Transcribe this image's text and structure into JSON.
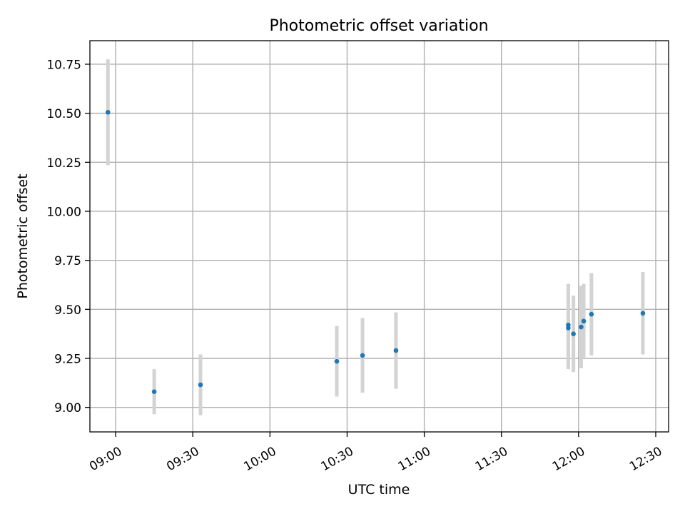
{
  "chart_data": {
    "type": "scatter",
    "title": "Photometric offset variation",
    "xlabel": "UTC time",
    "ylabel": "Photometric offset",
    "x_is_time": true,
    "xlim": [
      "08:50",
      "12:35"
    ],
    "ylim": [
      8.875,
      10.87
    ],
    "xticks": [
      "09:00",
      "09:30",
      "10:00",
      "10:30",
      "11:00",
      "11:30",
      "12:00",
      "12:30"
    ],
    "yticks": [
      9.0,
      9.25,
      9.5,
      9.75,
      10.0,
      10.25,
      10.5,
      10.75
    ],
    "ytick_labels": [
      "9.00",
      "9.25",
      "9.50",
      "9.75",
      "10.00",
      "10.25",
      "10.50",
      "10.75"
    ],
    "grid": true,
    "series": [
      {
        "x": [
          "08:57",
          "09:15",
          "09:33",
          "10:26",
          "10:36",
          "10:49",
          "11:56",
          "11:56",
          "11:58",
          "12:01",
          "12:02",
          "12:05",
          "12:25"
        ],
        "y": [
          10.505,
          9.08,
          9.115,
          9.235,
          9.265,
          9.29,
          9.42,
          9.405,
          9.375,
          9.41,
          9.44,
          9.475,
          9.48
        ],
        "yerr": [
          0.27,
          0.115,
          0.155,
          0.18,
          0.19,
          0.195,
          0.21,
          0.21,
          0.195,
          0.21,
          0.19,
          0.21,
          0.21
        ],
        "color": "#1f77b4",
        "errorbar_color": "#d3d3d3"
      }
    ]
  },
  "colors": {
    "point": "#1f77b4",
    "errorbar": "#d3d3d3",
    "grid": "#b0b0b0",
    "axis": "#000000"
  }
}
